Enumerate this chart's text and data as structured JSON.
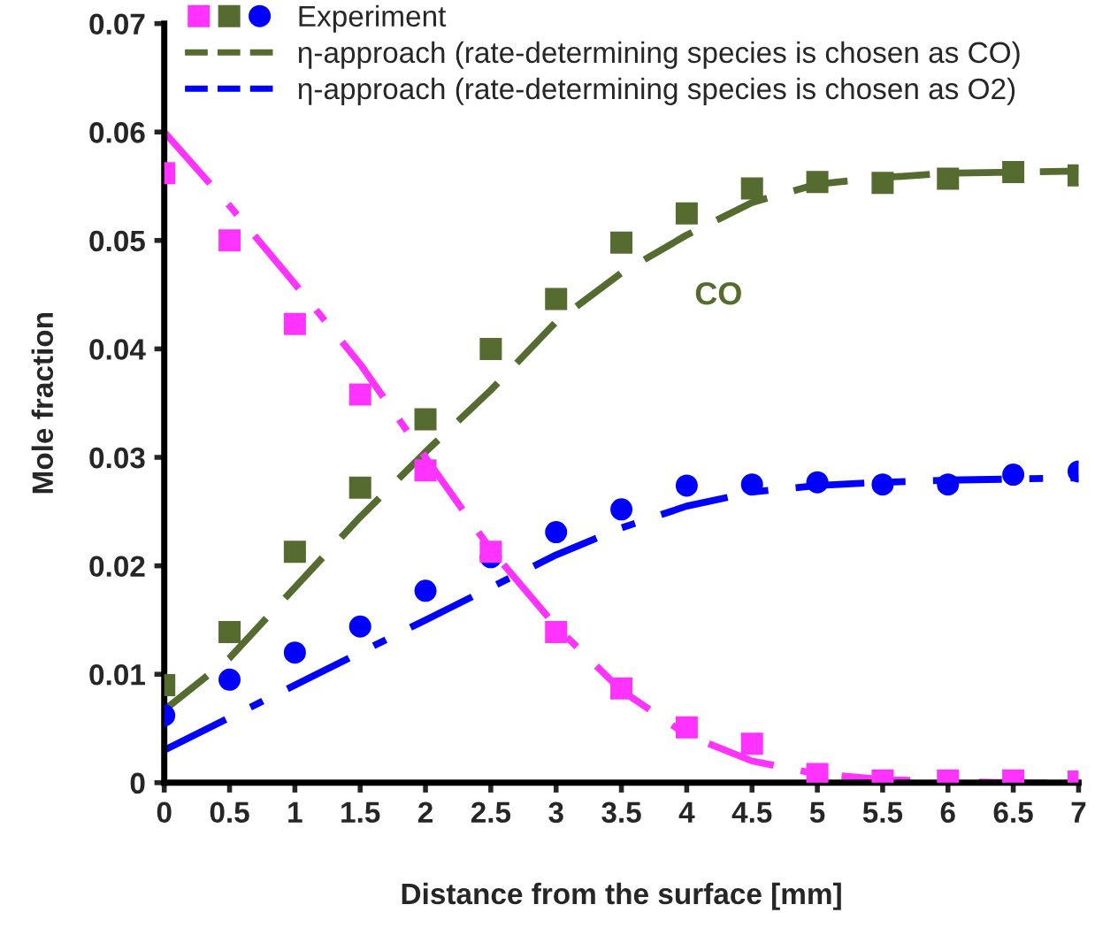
{
  "chart_data": {
    "type": "line",
    "xlabel": "Distance from the surface [mm]",
    "ylabel": "Mole fraction",
    "x": [
      0,
      0.5,
      1,
      1.5,
      2,
      2.5,
      3,
      3.5,
      4,
      4.5,
      5,
      5.5,
      6,
      6.5,
      7
    ],
    "xlim": [
      0,
      7
    ],
    "xticks": [
      0,
      0.5,
      1,
      1.5,
      2,
      2.5,
      3,
      3.5,
      4,
      4.5,
      5,
      5.5,
      6,
      6.5,
      7
    ],
    "ylim": [
      0,
      0.07
    ],
    "yticks": [
      0,
      0.01,
      0.02,
      0.03,
      0.04,
      0.05,
      0.06,
      0.07
    ],
    "grid": false,
    "legend": "top",
    "annotations": [
      "CO"
    ],
    "series": [
      {
        "type": "scatter",
        "marker": "square",
        "color": "#ff33ff",
        "values": [
          0.0562,
          0.05,
          0.0423,
          0.0358,
          0.0288,
          0.0213,
          0.0139,
          0.0087,
          0.0051,
          0.0036,
          0.0008,
          0.0002,
          0.0002,
          0.0002,
          0.0001
        ]
      },
      {
        "type": "scatter",
        "marker": "square",
        "color": "#556b2f",
        "values": [
          0.009,
          0.0139,
          0.0213,
          0.0272,
          0.0335,
          0.04,
          0.0446,
          0.0498,
          0.0525,
          0.0548,
          0.0554,
          0.0553,
          0.0557,
          0.0563,
          0.056
        ]
      },
      {
        "name": "Experiment",
        "type": "scatter",
        "marker": "circle",
        "color": "#0000ff",
        "values": [
          0.0062,
          0.0095,
          0.012,
          0.0144,
          0.0177,
          0.0208,
          0.0231,
          0.0252,
          0.0274,
          0.0275,
          0.0277,
          0.0275,
          0.0275,
          0.0284,
          0.0287
        ]
      },
      {
        "name": "η-approach (rate-determining species is chosen as CO)",
        "line_style": "dashed",
        "color": "#556b2f",
        "values": [
          0.0067,
          0.0115,
          0.018,
          0.0245,
          0.0305,
          0.0362,
          0.0425,
          0.047,
          0.0505,
          0.0535,
          0.0552,
          0.0558,
          0.0562,
          0.0563,
          0.0564
        ]
      },
      {
        "line_style": "dashdot",
        "color": "#ff33ff",
        "values": [
          0.06,
          0.0532,
          0.046,
          0.0386,
          0.03,
          0.0215,
          0.0144,
          0.0085,
          0.0044,
          0.002,
          0.0008,
          0.0003,
          0.0001,
          0.0,
          0.0
        ]
      },
      {
        "name": "η-approach (rate-determining species is chosen as O2)",
        "line_style": "dashdot",
        "color": "#0000ff",
        "values": [
          0.003,
          0.006,
          0.009,
          0.012,
          0.015,
          0.018,
          0.021,
          0.0235,
          0.0255,
          0.0268,
          0.0274,
          0.0277,
          0.0279,
          0.028,
          0.0281
        ]
      }
    ]
  }
}
